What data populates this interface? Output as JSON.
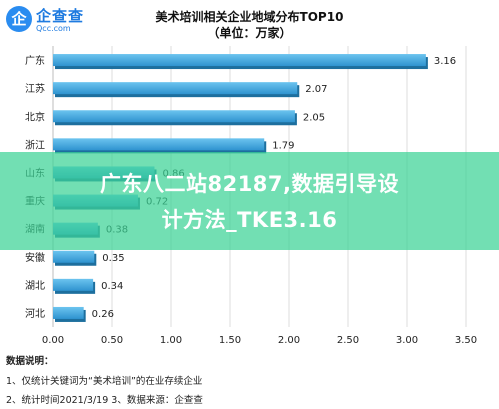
{
  "brand": {
    "name": "企查查",
    "domain": "Qcc.com",
    "mark": "企"
  },
  "chart_data": {
    "type": "bar",
    "orientation": "horizontal",
    "title": "美术培训相关企业地域分布TOP10",
    "subtitle": "（单位：万家）",
    "categories": [
      "广东",
      "江苏",
      "北京",
      "浙江",
      "山东",
      "重庆",
      "湖南",
      "安徽",
      "湖北",
      "河北"
    ],
    "values": [
      3.16,
      2.07,
      2.05,
      1.79,
      0.86,
      0.72,
      0.38,
      0.35,
      0.34,
      0.26
    ],
    "value_labels": [
      "3.16",
      "2.07",
      "2.05",
      "1.79",
      "0.86",
      "0.72",
      "0.38",
      "0.35",
      "0.34",
      "0.26"
    ],
    "xlim": [
      0,
      3.5
    ],
    "xticks": [
      "0.00",
      "0.50",
      "1.00",
      "1.50",
      "2.00",
      "2.50",
      "3.00",
      "3.50"
    ],
    "grid": true,
    "bar_color": "#36a3dc"
  },
  "notes": {
    "title": "数据说明：",
    "line1": "1、仅统计关键词为“美术培训”的在业存续企业",
    "line2": "2、统计时间2021/3/19    3、数据来源：企查查"
  },
  "watermark": {
    "line1": "广东八二站82187,数据引导设",
    "line2": "计方法_TKE3.16"
  }
}
